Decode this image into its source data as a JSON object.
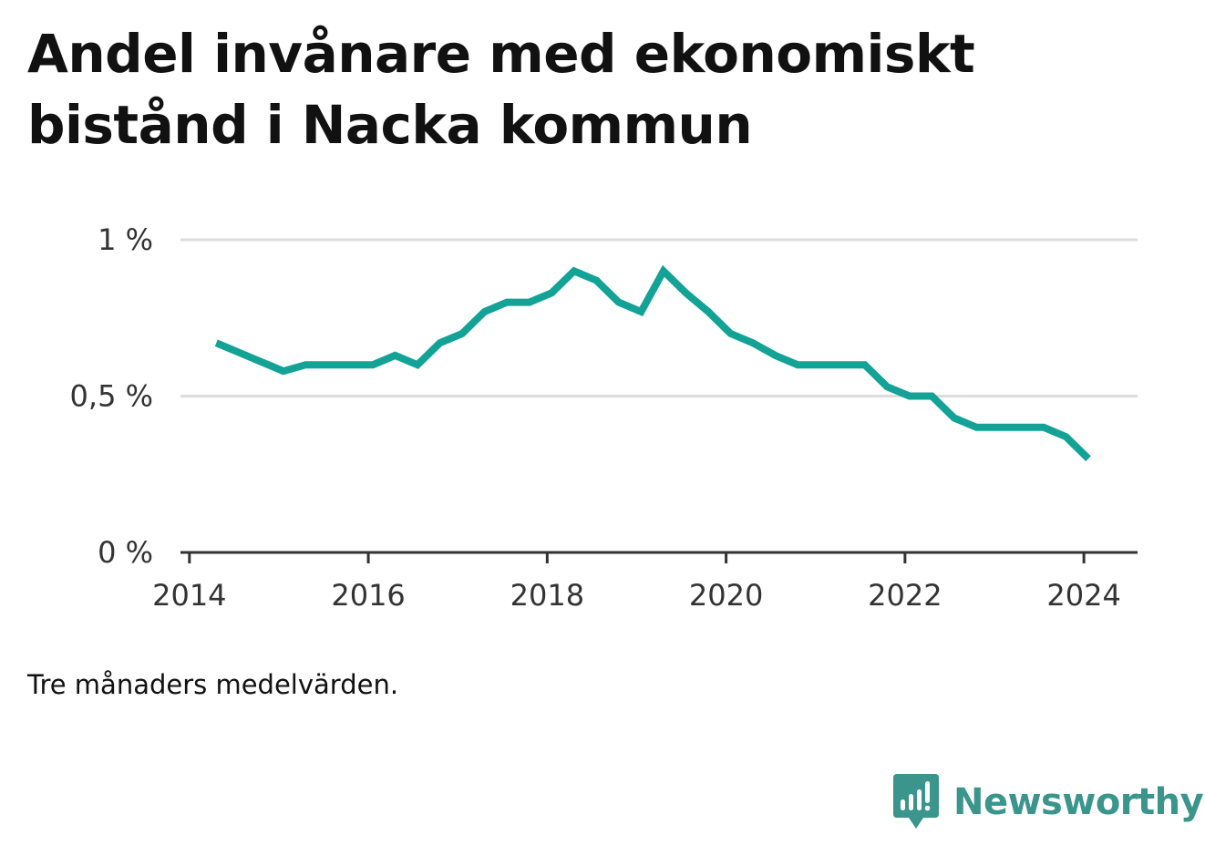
{
  "title": "Andel invånare med ekonomiskt bistånd i Nacka kommun",
  "note": "Tre månaders medelvärden.",
  "brand": {
    "name": "Newsworthy",
    "icon": "newsworthy-logo-icon",
    "color": "#3a958c"
  },
  "colors": {
    "line": "#12a296",
    "grid": "#dddddd",
    "axis": "#333333"
  },
  "chart_data": {
    "type": "line",
    "title": "Andel invånare med ekonomiskt bistånd i Nacka kommun",
    "xlabel": "",
    "ylabel": "",
    "ylim": [
      0,
      1
    ],
    "xlim": [
      2013.9,
      2024.6
    ],
    "grid": true,
    "y_ticks": [
      {
        "value": 0,
        "label": "0 %"
      },
      {
        "value": 0.5,
        "label": "0,5 %"
      },
      {
        "value": 1,
        "label": "1 %"
      }
    ],
    "x_ticks": [
      {
        "value": 2014,
        "label": "2014"
      },
      {
        "value": 2016,
        "label": "2016"
      },
      {
        "value": 2018,
        "label": "2018"
      },
      {
        "value": 2020,
        "label": "2020"
      },
      {
        "value": 2022,
        "label": "2022"
      },
      {
        "value": 2024,
        "label": "2024"
      }
    ],
    "series": [
      {
        "points": [
          [
            2014.3,
            0.67
          ],
          [
            2014.55,
            0.64
          ],
          [
            2014.8,
            0.61
          ],
          [
            2015.05,
            0.58
          ],
          [
            2015.3,
            0.6
          ],
          [
            2015.55,
            0.6
          ],
          [
            2015.8,
            0.6
          ],
          [
            2016.05,
            0.6
          ],
          [
            2016.3,
            0.63
          ],
          [
            2016.55,
            0.6
          ],
          [
            2016.8,
            0.67
          ],
          [
            2017.05,
            0.7
          ],
          [
            2017.3,
            0.77
          ],
          [
            2017.55,
            0.8
          ],
          [
            2017.8,
            0.8
          ],
          [
            2018.05,
            0.83
          ],
          [
            2018.3,
            0.9
          ],
          [
            2018.55,
            0.87
          ],
          [
            2018.8,
            0.8
          ],
          [
            2019.05,
            0.77
          ],
          [
            2019.3,
            0.9
          ],
          [
            2019.55,
            0.83
          ],
          [
            2019.8,
            0.77
          ],
          [
            2020.05,
            0.7
          ],
          [
            2020.3,
            0.67
          ],
          [
            2020.55,
            0.63
          ],
          [
            2020.8,
            0.6
          ],
          [
            2021.05,
            0.6
          ],
          [
            2021.3,
            0.6
          ],
          [
            2021.55,
            0.6
          ],
          [
            2021.8,
            0.53
          ],
          [
            2022.05,
            0.5
          ],
          [
            2022.3,
            0.5
          ],
          [
            2022.55,
            0.43
          ],
          [
            2022.8,
            0.4
          ],
          [
            2023.05,
            0.4
          ],
          [
            2023.3,
            0.4
          ],
          [
            2023.55,
            0.4
          ],
          [
            2023.8,
            0.37
          ],
          [
            2024.05,
            0.3
          ]
        ]
      }
    ]
  }
}
